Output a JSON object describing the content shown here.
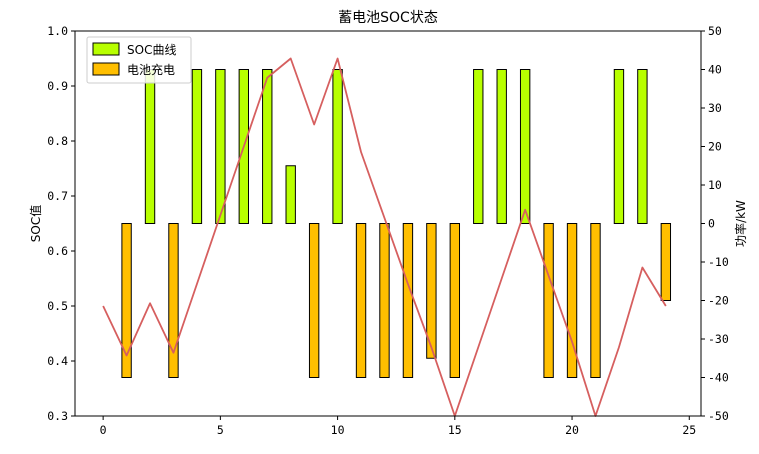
{
  "chart_data": {
    "type": "bar+line",
    "title": "蓄电池SOC状态",
    "ylabel_left": "SOC值",
    "ylabel_right": "功率/kW",
    "xlim": [
      -1.2,
      25.5
    ],
    "ylim_left": [
      0.3,
      1.0
    ],
    "ylim_right": [
      -50,
      50
    ],
    "x_ticks": [
      0,
      5,
      10,
      15,
      20,
      25
    ],
    "y_left_ticks": [
      0.3,
      0.4,
      0.5,
      0.6,
      0.7,
      0.8,
      0.9,
      1.0
    ],
    "y_right_ticks": [
      -50,
      -40,
      -30,
      -20,
      -10,
      0,
      10,
      20,
      30,
      40,
      50
    ],
    "legend_position": "upper-left",
    "bar_width": 0.4,
    "series": [
      {
        "name": "SOC曲线",
        "kind": "bar",
        "axis": "right",
        "color": "#b8ff00",
        "x": [
          2,
          4,
          5,
          6,
          7,
          8,
          10,
          16,
          17,
          18,
          22,
          23
        ],
        "values": [
          40,
          40,
          40,
          40,
          40,
          15,
          40,
          40,
          40,
          40,
          40,
          40
        ]
      },
      {
        "name": "电池充电",
        "kind": "bar",
        "axis": "right",
        "color": "#ffbf00",
        "x": [
          1,
          3,
          9,
          11,
          12,
          13,
          14,
          15,
          19,
          20,
          21,
          24
        ],
        "values": [
          -40,
          -40,
          -40,
          -40,
          -40,
          -40,
          -35,
          -40,
          -40,
          -40,
          -40,
          -20
        ]
      },
      {
        "name": "",
        "kind": "line",
        "axis": "left",
        "color": "#d65f5f",
        "x": [
          0,
          1,
          2,
          3,
          4,
          5,
          6,
          7,
          8,
          9,
          10,
          11,
          12,
          13,
          14,
          15,
          16,
          17,
          18,
          19,
          20,
          21,
          22,
          23,
          24
        ],
        "values": [
          0.5,
          0.41,
          0.505,
          0.415,
          0.54,
          0.665,
          0.79,
          0.915,
          0.95,
          0.83,
          0.95,
          0.78,
          0.66,
          0.54,
          0.425,
          0.3,
          0.425,
          0.55,
          0.675,
          0.555,
          0.435,
          0.3,
          0.425,
          0.57,
          0.5
        ]
      }
    ]
  }
}
